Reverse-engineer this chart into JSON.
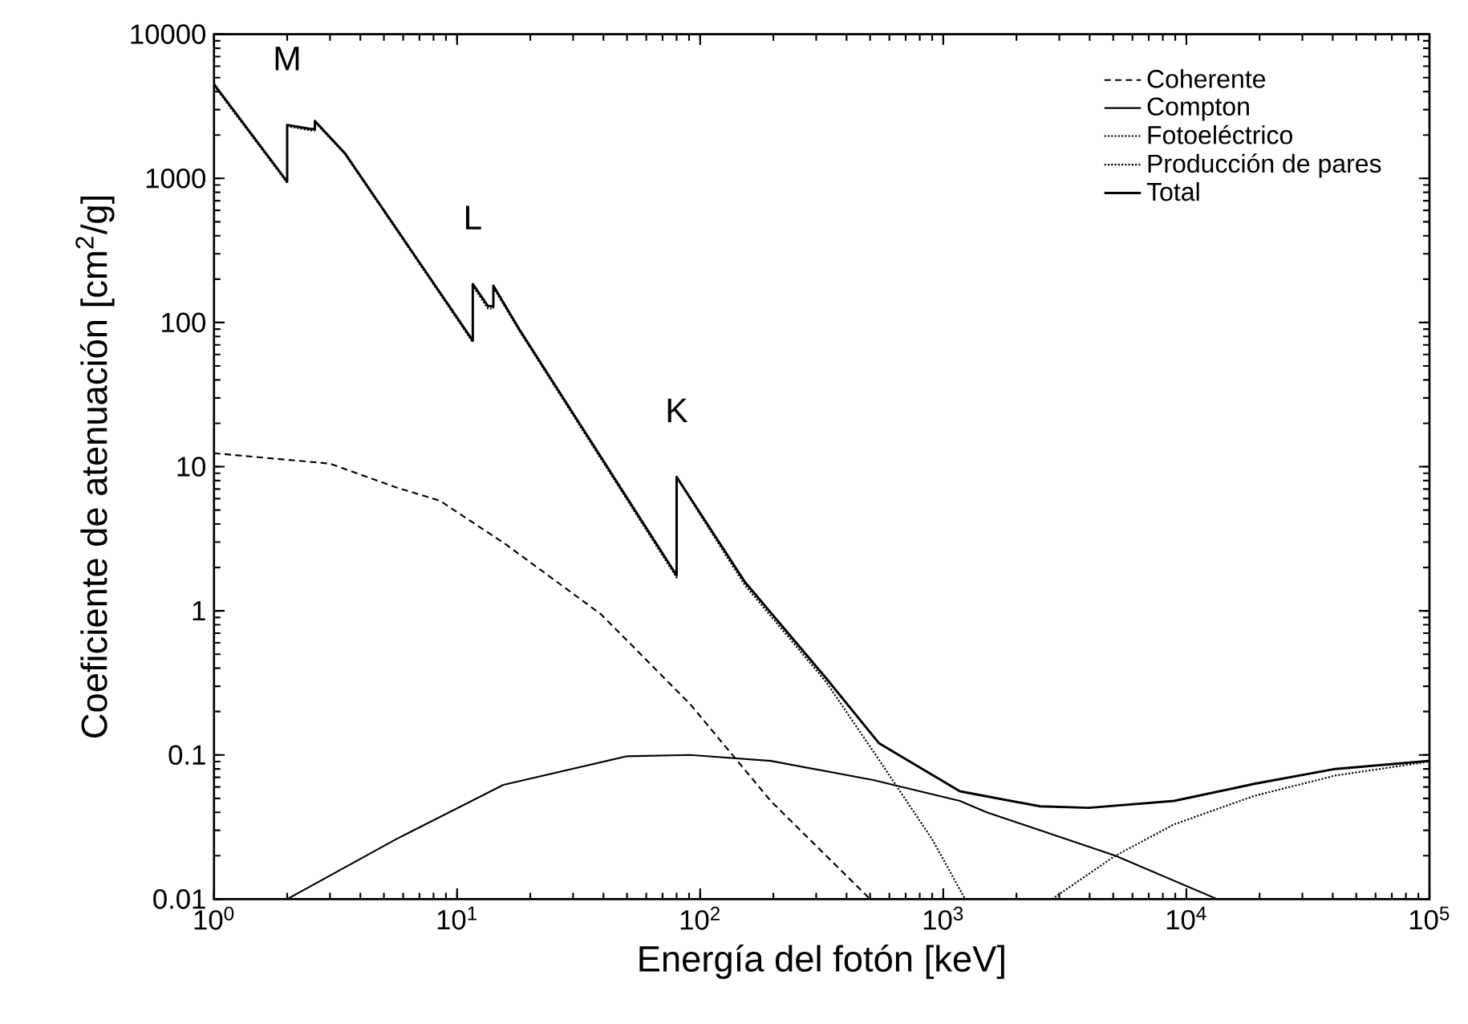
{
  "chart_data": {
    "type": "line",
    "xlabel": "Energía del fotón  [keV]",
    "ylabel": "Coeficiente de atenuación  [cm$^{2}$/g]",
    "log": "xy",
    "xlim": [
      1,
      100000
    ],
    "ylim": [
      0.01,
      10000
    ],
    "xticks": [
      {
        "value": 1,
        "label": "10$^{0}$"
      },
      {
        "value": 10,
        "label": "10$^{1}$"
      },
      {
        "value": 100,
        "label": "10$^{2}$"
      },
      {
        "value": 1000,
        "label": "10$^{3}$"
      },
      {
        "value": 10000,
        "label": "10$^{4}$"
      },
      {
        "value": 100000,
        "label": "10$^{5}$"
      }
    ],
    "yticks": [
      {
        "value": 0.01,
        "label": "0.01"
      },
      {
        "value": 0.1,
        "label": "0.1"
      },
      {
        "value": 1,
        "label": "1"
      },
      {
        "value": 10,
        "label": "10"
      },
      {
        "value": 100,
        "label": "100"
      },
      {
        "value": 1000,
        "label": "1000"
      },
      {
        "value": 10000,
        "label": "10000"
      }
    ],
    "grid": false,
    "legend": "top right",
    "marker": "none",
    "series": [
      {
        "name": "Coherente",
        "color": "#000000",
        "line_style": "dashed",
        "x": [
          1,
          3,
          5.6,
          8.5,
          15.6,
          39,
          91,
          195,
          500
        ],
        "values": [
          12.4,
          10.5,
          7.2,
          5.8,
          2.95,
          0.95,
          0.225,
          0.048,
          0.01
        ]
      },
      {
        "name": "Compton",
        "color": "#000000",
        "line_style": "solid",
        "x": [
          2,
          5.6,
          15.5,
          50,
          91,
          195,
          515,
          1170,
          1510,
          5100,
          13400
        ],
        "values": [
          0.01,
          0.026,
          0.062,
          0.098,
          0.1,
          0.091,
          0.067,
          0.048,
          0.04,
          0.02,
          0.01
        ]
      },
      {
        "name": "Fotoeléctrico",
        "color": "#000000",
        "line_style": "dotted",
        "x": [
          1,
          2,
          2,
          2.5,
          2.6,
          2.6,
          3.45,
          11.6,
          11.6,
          13.4,
          14.1,
          14.1,
          18,
          80,
          80,
          153,
          330,
          543,
          900,
          1230
        ],
        "values": [
          4400,
          930,
          2300,
          2150,
          2150,
          2450,
          1480,
          73,
          180,
          125,
          125,
          175,
          88,
          1.7,
          8.4,
          1.5,
          0.32,
          0.093,
          0.026,
          0.01
        ]
      },
      {
        "name": "Producción de pares",
        "color": "#000000",
        "line_style": "dotted",
        "x": [
          2800,
          5100,
          8900,
          19000,
          41000,
          100000
        ],
        "values": [
          0.01,
          0.02,
          0.033,
          0.052,
          0.072,
          0.09
        ]
      },
      {
        "name": "Total",
        "color": "#000000",
        "line_style": "solid",
        "x": [
          1,
          2,
          2,
          2.5,
          2.6,
          2.6,
          3.45,
          11.6,
          11.6,
          13.4,
          14.1,
          14.1,
          18,
          80,
          80,
          153,
          330,
          543,
          1170,
          2500,
          3970,
          8900,
          19000,
          41000,
          100000
        ],
        "values": [
          4500,
          950,
          2350,
          2200,
          2200,
          2500,
          1500,
          75,
          185,
          130,
          130,
          180,
          90,
          1.76,
          8.5,
          1.58,
          0.34,
          0.121,
          0.056,
          0.044,
          0.043,
          0.048,
          0.063,
          0.08,
          0.091
        ]
      }
    ],
    "annotations": [
      {
        "text": "M",
        "x": 2,
        "y": 2350
      },
      {
        "text": "L",
        "x": 11.6,
        "y": 185
      },
      {
        "text": "K",
        "x": 80,
        "y": 8.5
      }
    ]
  }
}
